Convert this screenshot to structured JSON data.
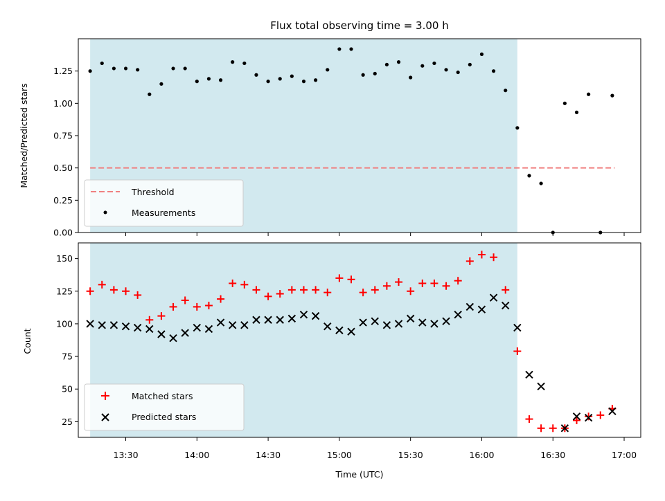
{
  "chart_data": [
    {
      "type": "scatter",
      "title": "Flux total observing time = 3.00 h",
      "xlabel": "",
      "ylabel": "Matched/Predicted stars",
      "xlim": [
        "13:10",
        "17:07"
      ],
      "ylim": [
        0,
        1.5
      ],
      "yticks": [
        0.0,
        0.25,
        0.5,
        0.75,
        1.0,
        1.25
      ],
      "ytick_labels": [
        "0.00",
        "0.25",
        "0.50",
        "0.75",
        "1.00",
        "1.25"
      ],
      "shaded_region": {
        "start": "13:15",
        "end": "16:15",
        "color": "#d2e9ef"
      },
      "threshold": {
        "name": "Threshold",
        "value": 0.5,
        "x_start": "13:15",
        "x_end": "16:56",
        "color": "#f08080",
        "style": "dashed"
      },
      "series": [
        {
          "name": "Measurements",
          "marker": "dot",
          "color": "#000000",
          "x": [
            "13:15",
            "13:20",
            "13:25",
            "13:30",
            "13:35",
            "13:40",
            "13:45",
            "13:50",
            "13:55",
            "14:00",
            "14:05",
            "14:10",
            "14:15",
            "14:20",
            "14:25",
            "14:30",
            "14:35",
            "14:40",
            "14:45",
            "14:50",
            "14:55",
            "15:00",
            "15:05",
            "15:10",
            "15:15",
            "15:20",
            "15:25",
            "15:30",
            "15:35",
            "15:40",
            "15:45",
            "15:50",
            "15:55",
            "16:00",
            "16:05",
            "16:10",
            "16:15",
            "16:20",
            "16:25",
            "16:30",
            "16:35",
            "16:40",
            "16:45",
            "16:50",
            "16:55"
          ],
          "values": [
            1.25,
            1.31,
            1.27,
            1.27,
            1.26,
            1.07,
            1.15,
            1.27,
            1.27,
            1.17,
            1.19,
            1.18,
            1.32,
            1.31,
            1.22,
            1.17,
            1.19,
            1.21,
            1.17,
            1.18,
            1.26,
            1.42,
            1.42,
            1.22,
            1.23,
            1.3,
            1.32,
            1.2,
            1.29,
            1.31,
            1.26,
            1.24,
            1.3,
            1.38,
            1.25,
            1.1,
            0.81,
            0.44,
            0.38,
            0.0,
            1.0,
            0.93,
            1.07,
            0.0,
            1.06
          ]
        }
      ],
      "legend": {
        "location": "lower-left",
        "entries": [
          "Threshold",
          "Measurements"
        ]
      }
    },
    {
      "type": "scatter",
      "title": "",
      "xlabel": "Time (UTC)",
      "ylabel": "Count",
      "xlim": [
        "13:10",
        "17:07"
      ],
      "ylim": [
        13,
        162
      ],
      "yticks": [
        25,
        50,
        75,
        100,
        125,
        150
      ],
      "ytick_labels": [
        "25",
        "50",
        "75",
        "100",
        "125",
        "150"
      ],
      "xticks": [
        "13:30",
        "14:00",
        "14:30",
        "15:00",
        "15:30",
        "16:00",
        "16:30",
        "17:00"
      ],
      "xtick_labels": [
        "13:30",
        "14:00",
        "14:30",
        "15:00",
        "15:30",
        "16:00",
        "16:30",
        "17:00"
      ],
      "shaded_region": {
        "start": "13:15",
        "end": "16:15",
        "color": "#d2e9ef"
      },
      "series": [
        {
          "name": "Matched stars",
          "marker": "plus",
          "color": "#ff0000",
          "x": [
            "13:15",
            "13:20",
            "13:25",
            "13:30",
            "13:35",
            "13:40",
            "13:45",
            "13:50",
            "13:55",
            "14:00",
            "14:05",
            "14:10",
            "14:15",
            "14:20",
            "14:25",
            "14:30",
            "14:35",
            "14:40",
            "14:45",
            "14:50",
            "14:55",
            "15:00",
            "15:05",
            "15:10",
            "15:15",
            "15:20",
            "15:25",
            "15:30",
            "15:35",
            "15:40",
            "15:45",
            "15:50",
            "15:55",
            "16:00",
            "16:05",
            "16:10",
            "16:15",
            "16:20",
            "16:25",
            "16:30",
            "16:35",
            "16:40",
            "16:45",
            "16:50",
            "16:55"
          ],
          "values": [
            125,
            130,
            126,
            125,
            122,
            103,
            106,
            113,
            118,
            113,
            114,
            119,
            131,
            130,
            126,
            121,
            123,
            126,
            126,
            126,
            124,
            135,
            134,
            124,
            126,
            129,
            132,
            125,
            131,
            131,
            129,
            133,
            148,
            153,
            151,
            126,
            79,
            27,
            20,
            20,
            20,
            26,
            29,
            30,
            35
          ]
        },
        {
          "name": "Predicted stars",
          "marker": "x",
          "color": "#000000",
          "x": [
            "13:15",
            "13:20",
            "13:25",
            "13:30",
            "13:35",
            "13:40",
            "13:45",
            "13:50",
            "13:55",
            "14:00",
            "14:05",
            "14:10",
            "14:15",
            "14:20",
            "14:25",
            "14:30",
            "14:35",
            "14:40",
            "14:45",
            "14:50",
            "14:55",
            "15:00",
            "15:05",
            "15:10",
            "15:15",
            "15:20",
            "15:25",
            "15:30",
            "15:35",
            "15:40",
            "15:45",
            "15:50",
            "15:55",
            "16:00",
            "16:05",
            "16:10",
            "16:15",
            "16:20",
            "16:25",
            "16:35",
            "16:40",
            "16:45",
            "16:55"
          ],
          "values": [
            100,
            99,
            99,
            98,
            97,
            96,
            92,
            89,
            93,
            97,
            96,
            101,
            99,
            99,
            103,
            103,
            103,
            104,
            107,
            106,
            98,
            95,
            94,
            101,
            102,
            99,
            100,
            104,
            101,
            100,
            102,
            107,
            113,
            111,
            120,
            114,
            97,
            61,
            52,
            20,
            29,
            28,
            33
          ]
        }
      ],
      "legend": {
        "location": "lower-left",
        "entries": [
          "Matched stars",
          "Predicted stars"
        ]
      }
    }
  ]
}
